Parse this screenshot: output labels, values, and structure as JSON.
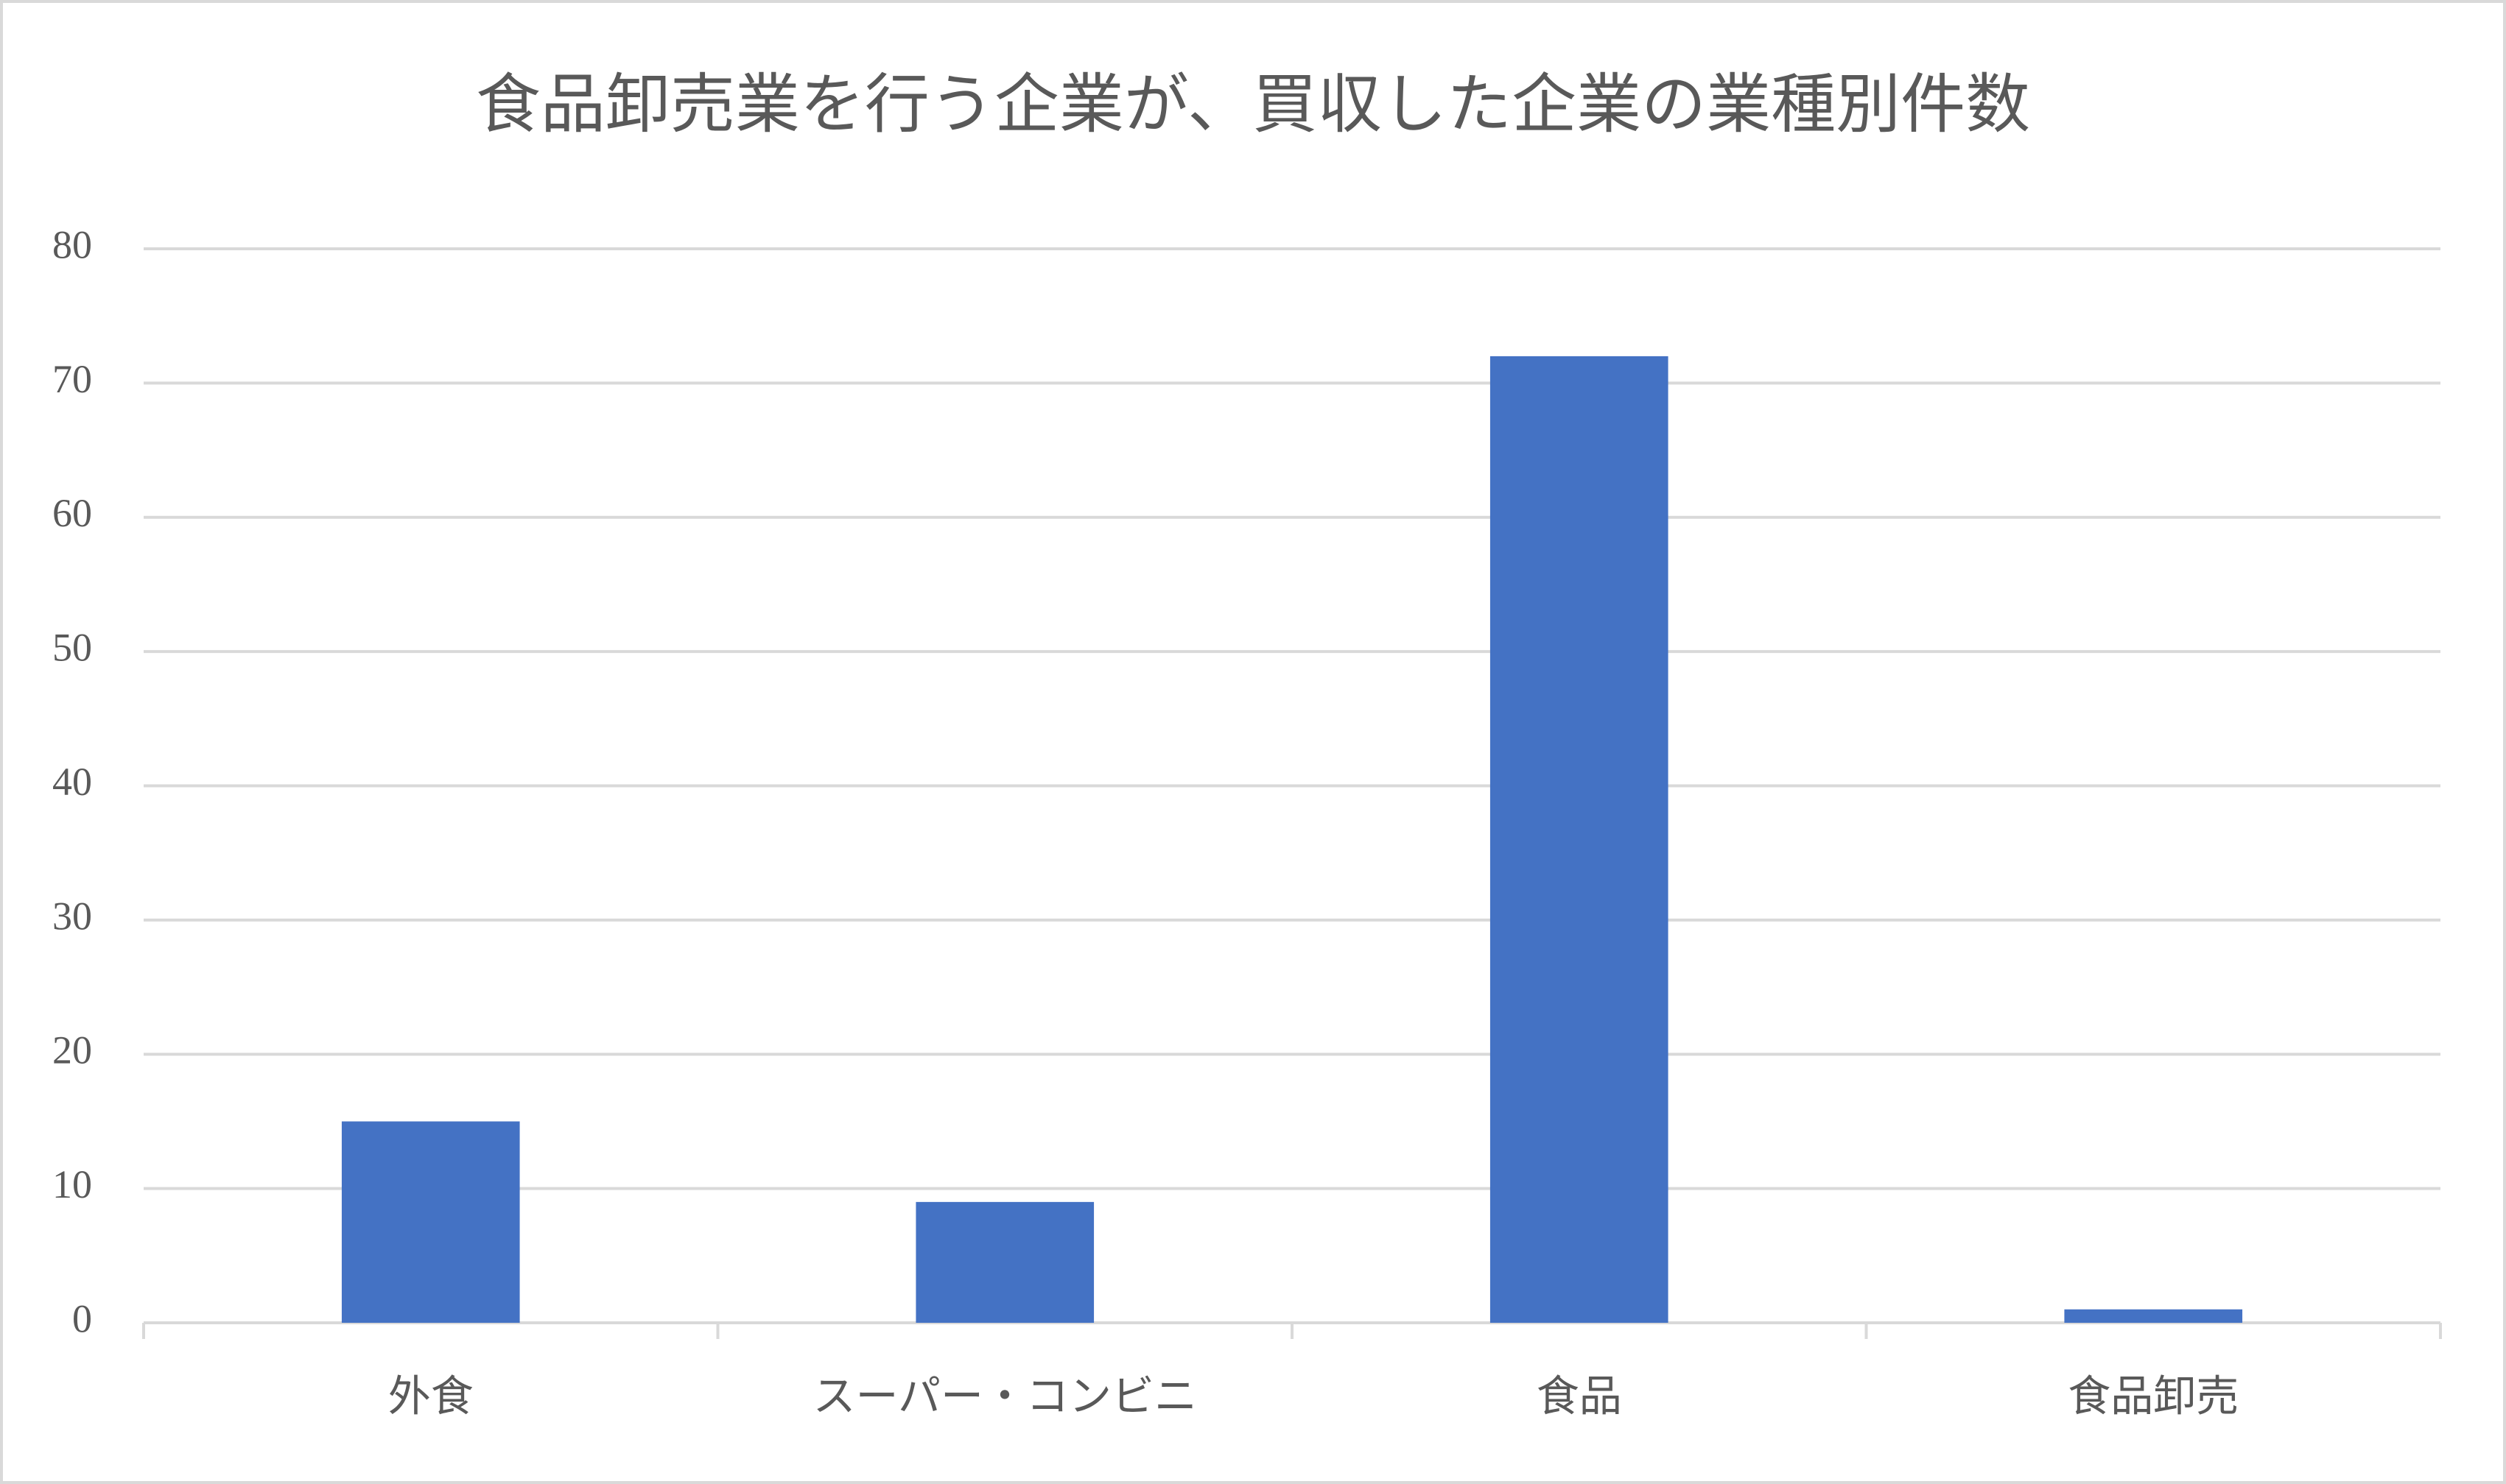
{
  "chart_data": {
    "type": "bar",
    "title": "食品卸売業を行う企業が、買収した企業の業種別件数",
    "categories": [
      "外食",
      "スーパー・コンビニ",
      "食品",
      "食品卸売"
    ],
    "values": [
      15,
      9,
      72,
      1
    ],
    "color": "#4472c4",
    "ylim": [
      0,
      80
    ],
    "yticks": [
      0,
      10,
      20,
      30,
      40,
      50,
      60,
      70,
      80
    ],
    "grid": true
  }
}
